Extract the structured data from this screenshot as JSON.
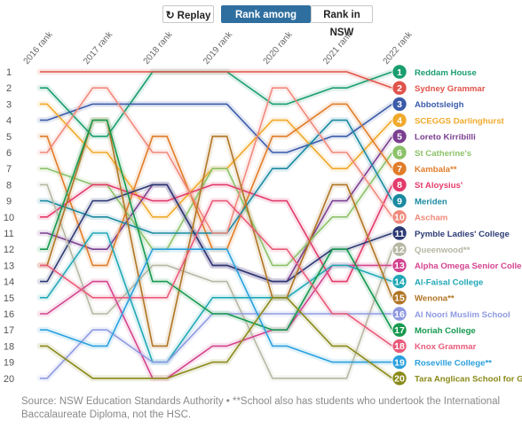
{
  "controls": {
    "replay_label": "Replay",
    "rank_group_label": "Rank among group",
    "rank_nsw_label": "Rank in NSW",
    "replay_icon": "replay-icon"
  },
  "source_text": "Source: NSW Education Standards Authority • **School also has students who undertook the International Baccalaureate Diploma, not the HSC.",
  "chart_data": {
    "type": "line",
    "chart_kind": "bump",
    "x": [
      "2016 rank",
      "2017 rank",
      "2018 rank",
      "2019 rank",
      "2020 rank",
      "2021 rank",
      "2022 rank"
    ],
    "y_ticks": [
      "1",
      "2",
      "3",
      "4",
      "5",
      "6",
      "7",
      "8",
      "9",
      "10",
      "11",
      "12",
      "13",
      "14",
      "15",
      "16",
      "17",
      "18",
      "19",
      "20"
    ],
    "ylim": [
      1,
      20
    ],
    "y_reversed": true,
    "grid": false,
    "series": [
      {
        "name": "Reddam House",
        "label_num": "1",
        "color": "#1a9e6e",
        "values": [
          2,
          5,
          1,
          1,
          3,
          2,
          1
        ]
      },
      {
        "name": "Sydney Grammar",
        "label_num": "2",
        "color": "#e0534a",
        "values": [
          1,
          1,
          1,
          1,
          1,
          1,
          2
        ]
      },
      {
        "name": "Abbotsleigh",
        "label_num": "3",
        "color": "#3b5ba9",
        "values": [
          4,
          3,
          3,
          3,
          6,
          5,
          3
        ]
      },
      {
        "name": "SCEGGS Darlinghurst",
        "label_num": "4",
        "color": "#f0a92c",
        "values": [
          3,
          6,
          10,
          7,
          4,
          7,
          4
        ]
      },
      {
        "name": "Loreto Kirribilli",
        "label_num": "5",
        "color": "#7a3f8f",
        "values": [
          11,
          12,
          8,
          13,
          14,
          9,
          5
        ]
      },
      {
        "name": "St Catherine's",
        "label_num": "6",
        "color": "#8cc26a",
        "values": [
          7,
          8,
          12,
          7,
          13,
          10,
          6
        ]
      },
      {
        "name": "Kambala**",
        "label_num": "7",
        "color": "#e07d2a",
        "values": [
          5,
          13,
          5,
          12,
          5,
          3,
          7
        ]
      },
      {
        "name": "St Aloysius'",
        "label_num": "8",
        "color": "#e23b6b",
        "values": [
          10,
          8,
          9,
          8,
          9,
          14,
          8
        ]
      },
      {
        "name": "Meriden",
        "label_num": "9",
        "color": "#1b8aa0",
        "values": [
          9,
          10,
          11,
          11,
          7,
          4,
          9
        ]
      },
      {
        "name": "Ascham",
        "label_num": "10",
        "color": "#f08a7c",
        "values": [
          6,
          2,
          6,
          11,
          2,
          6,
          10
        ]
      },
      {
        "name": "Pymble Ladies' College",
        "label_num": "11",
        "color": "#2c3a74",
        "values": [
          14,
          9,
          8,
          13,
          14,
          12,
          11
        ]
      },
      {
        "name": "Queenwood**",
        "label_num": "12",
        "color": "#b7b7a4",
        "values": [
          8,
          16,
          13,
          14,
          20,
          20,
          12
        ]
      },
      {
        "name": "Alpha Omega Senior College",
        "label_num": "13",
        "color": "#d3448f",
        "values": [
          16,
          14,
          20,
          18,
          17,
          13,
          13
        ]
      },
      {
        "name": "Al-Faisal College",
        "label_num": "14",
        "color": "#22a8b6",
        "values": [
          15,
          11,
          19,
          15,
          15,
          13,
          14
        ]
      },
      {
        "name": "Wenona**",
        "label_num": "15",
        "color": "#b07525",
        "values": [
          13,
          4,
          18,
          5,
          15,
          8,
          15
        ]
      },
      {
        "name": "Al Noori Muslim School",
        "label_num": "16",
        "color": "#8f9ae0",
        "values": [
          20,
          17,
          19,
          16,
          16,
          16,
          16
        ]
      },
      {
        "name": "Moriah College",
        "label_num": "17",
        "color": "#17994f",
        "values": [
          12,
          4,
          14,
          16,
          17,
          12,
          17
        ]
      },
      {
        "name": "Knox Grammar",
        "label_num": "18",
        "color": "#e85b7a",
        "values": [
          13,
          15,
          15,
          9,
          12,
          16,
          18
        ]
      },
      {
        "name": "Roseville College**",
        "label_num": "19",
        "color": "#2aa0dd",
        "values": [
          17,
          18,
          12,
          12,
          18,
          19,
          19
        ]
      },
      {
        "name": "Tara Anglican School for Girls**",
        "label_num": "20",
        "color": "#8a8a1a",
        "values": [
          18,
          20,
          20,
          19,
          15,
          18,
          20
        ]
      }
    ]
  }
}
